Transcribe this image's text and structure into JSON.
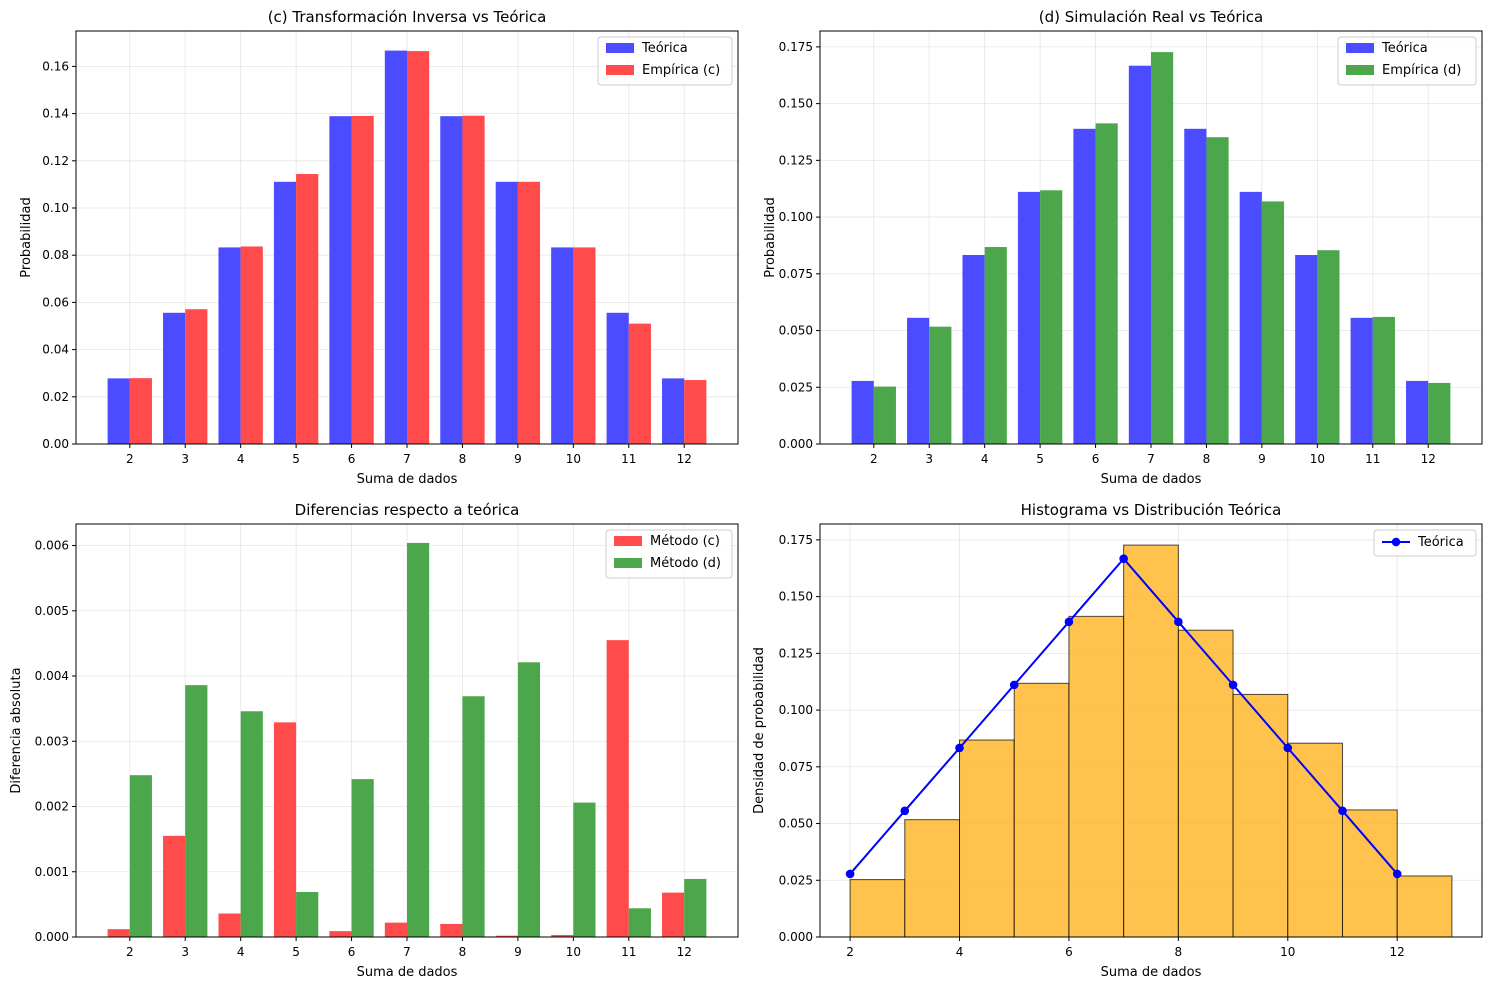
{
  "chart_data": [
    {
      "type": "bar",
      "title": "(c) Transformación Inversa vs Teórica",
      "xlabel": "Suma de dados",
      "ylabel": "Probabilidad",
      "categories": [
        "2",
        "3",
        "4",
        "5",
        "6",
        "7",
        "8",
        "9",
        "10",
        "11",
        "12"
      ],
      "ylim": [
        0,
        0.175
      ],
      "yticks": [
        "0.00",
        "0.02",
        "0.04",
        "0.06",
        "0.08",
        "0.10",
        "0.12",
        "0.14",
        "0.16"
      ],
      "ytick_values": [
        0,
        0.02,
        0.04,
        0.06,
        0.08,
        0.1,
        0.12,
        0.14,
        0.16
      ],
      "grid": true,
      "legend": "top-right",
      "series": [
        {
          "name": "Teórica",
          "color": "#4b4bff",
          "values": [
            0.0278,
            0.0556,
            0.0833,
            0.1111,
            0.1389,
            0.1667,
            0.1389,
            0.1111,
            0.0833,
            0.0556,
            0.0278
          ]
        },
        {
          "name": "Empírica (c)",
          "color": "#ff4b4b",
          "values": [
            0.0279,
            0.0571,
            0.0837,
            0.1144,
            0.139,
            0.1665,
            0.1391,
            0.1111,
            0.0833,
            0.051,
            0.0271
          ]
        }
      ]
    },
    {
      "type": "bar",
      "title": "(d) Simulación Real vs Teórica",
      "xlabel": "Suma de dados",
      "ylabel": "Probabilidad",
      "categories": [
        "2",
        "3",
        "4",
        "5",
        "6",
        "7",
        "8",
        "9",
        "10",
        "11",
        "12"
      ],
      "ylim": [
        0,
        0.182
      ],
      "yticks": [
        "0.000",
        "0.025",
        "0.050",
        "0.075",
        "0.100",
        "0.125",
        "0.150",
        "0.175"
      ],
      "ytick_values": [
        0,
        0.025,
        0.05,
        0.075,
        0.1,
        0.125,
        0.15,
        0.175
      ],
      "grid": true,
      "legend": "top-right",
      "series": [
        {
          "name": "Teórica",
          "color": "#4b4bff",
          "values": [
            0.0278,
            0.0556,
            0.0833,
            0.1111,
            0.1389,
            0.1667,
            0.1389,
            0.1111,
            0.0833,
            0.0556,
            0.0278
          ]
        },
        {
          "name": "Empírica (d)",
          "color": "#4ca64c",
          "values": [
            0.0253,
            0.0517,
            0.0868,
            0.1118,
            0.1413,
            0.1727,
            0.1352,
            0.1069,
            0.0854,
            0.056,
            0.0269
          ]
        }
      ]
    },
    {
      "type": "bar",
      "title": "Diferencias respecto a teórica",
      "xlabel": "Suma de dados",
      "ylabel": "Diferencia absoluta",
      "categories": [
        "2",
        "3",
        "4",
        "5",
        "6",
        "7",
        "8",
        "9",
        "10",
        "11",
        "12"
      ],
      "ylim": [
        0,
        0.00633
      ],
      "yticks": [
        "0.000",
        "0.001",
        "0.002",
        "0.003",
        "0.004",
        "0.005",
        "0.006"
      ],
      "ytick_values": [
        0,
        0.001,
        0.002,
        0.003,
        0.004,
        0.005,
        0.006
      ],
      "grid": true,
      "legend": "top-right",
      "series": [
        {
          "name": "Método (c)",
          "color": "#ff4b4b",
          "values": [
            0.00012,
            0.00155,
            0.00036,
            0.00329,
            9e-05,
            0.00022,
            0.0002,
            2e-05,
            3e-05,
            0.00455,
            0.00068
          ]
        },
        {
          "name": "Método (d)",
          "color": "#4ca64c",
          "values": [
            0.00248,
            0.00386,
            0.00346,
            0.00069,
            0.00242,
            0.00604,
            0.00369,
            0.00421,
            0.00206,
            0.00044,
            0.00089
          ]
        }
      ]
    },
    {
      "type": "bar",
      "title": "Histograma vs Distribución Teórica",
      "xlabel": "Suma de dados",
      "ylabel": "Densidad de probabilidad",
      "xlim": [
        1.45,
        13.55
      ],
      "ylim": [
        0,
        0.182
      ],
      "xticks": [
        "2",
        "4",
        "6",
        "8",
        "10",
        "12"
      ],
      "xtick_values": [
        2,
        4,
        6,
        8,
        10,
        12
      ],
      "yticks": [
        "0.000",
        "0.025",
        "0.050",
        "0.075",
        "0.100",
        "0.125",
        "0.150",
        "0.175"
      ],
      "ytick_values": [
        0,
        0.025,
        0.05,
        0.075,
        0.1,
        0.125,
        0.15,
        0.175
      ],
      "grid": true,
      "legend": "top-right",
      "histogram": {
        "color": "#ffb31f",
        "bin_edges": [
          2,
          3,
          4,
          5,
          6,
          7,
          8,
          9,
          10,
          11,
          12,
          13
        ],
        "values": [
          0.0253,
          0.0517,
          0.0868,
          0.1118,
          0.1413,
          0.1727,
          0.1352,
          0.1069,
          0.0854,
          0.056,
          0.0269
        ]
      },
      "series": [
        {
          "name": "Teórica",
          "color": "#0000ff",
          "type": "line",
          "x": [
            2,
            3,
            4,
            5,
            6,
            7,
            8,
            9,
            10,
            11,
            12
          ],
          "values": [
            0.0278,
            0.0556,
            0.0833,
            0.1111,
            0.1389,
            0.1667,
            0.1389,
            0.1111,
            0.0833,
            0.0556,
            0.0278
          ]
        }
      ]
    }
  ]
}
